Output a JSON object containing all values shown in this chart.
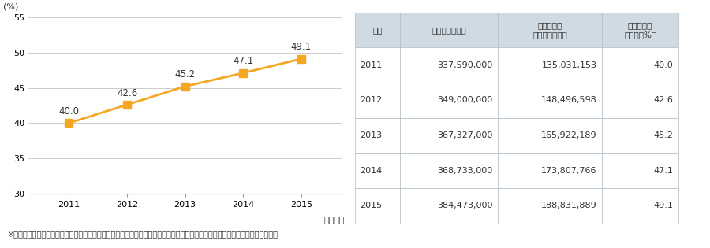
{
  "years": [
    2011,
    2012,
    2013,
    2014,
    2015
  ],
  "values": [
    40.0,
    42.6,
    45.2,
    47.1,
    49.1
  ],
  "line_color": "#F5A623",
  "marker_color": "#F5A623",
  "ylabel": "(%)",
  "xlabel": "（年度）",
  "ylim": [
    30,
    55
  ],
  "yticks": [
    30,
    35,
    40,
    45,
    50,
    55
  ],
  "background_color": "#ffffff",
  "grid_color": "#cccccc",
  "table_header_bg": "#d9e1ea",
  "table_col1": "年度",
  "table_col2": "年間総手続件数",
  "table_col3_line1": "オンライン",
  "table_col3_line2": "利用件数（件）",
  "table_col4_line1": "オンライン",
  "table_col4_line2": "利用率（%）",
  "table_data": [
    [
      "2011",
      "337,590,000",
      "135,031,153",
      "40.0"
    ],
    [
      "2012",
      "349,000,000",
      "148,496,598",
      "42.6"
    ],
    [
      "2013",
      "367,327,000",
      "165,922,189",
      "45.2"
    ],
    [
      "2014",
      "368,733,000",
      "173,807,766",
      "47.1"
    ],
    [
      "2015",
      "384,473,000",
      "188,831,889",
      "49.1"
    ]
  ],
  "footnote": "※年間総手続件数は、対象手続を既にオンライン化している団体における総手続件数と人口を元に算出した、全国における推計値",
  "font_size_label": 8,
  "font_size_tick": 8,
  "font_size_annotation": 8.5,
  "font_size_table": 8
}
